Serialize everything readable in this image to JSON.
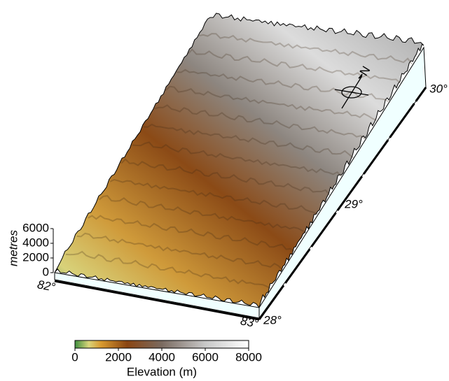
{
  "map": {
    "z_axis": {
      "label": "metres",
      "range": [
        0,
        6000
      ],
      "ticks": [
        0,
        2000,
        4000,
        6000
      ]
    },
    "longitude_labels": [
      "82°",
      "83°"
    ],
    "latitude_labels": [
      "28°",
      "29°",
      "30°"
    ],
    "north_label": "N",
    "colorbar": {
      "label": "Elevation (m)",
      "range": [
        0,
        8000
      ],
      "ticks": [
        0,
        2000,
        4000,
        6000,
        8000
      ]
    }
  }
}
